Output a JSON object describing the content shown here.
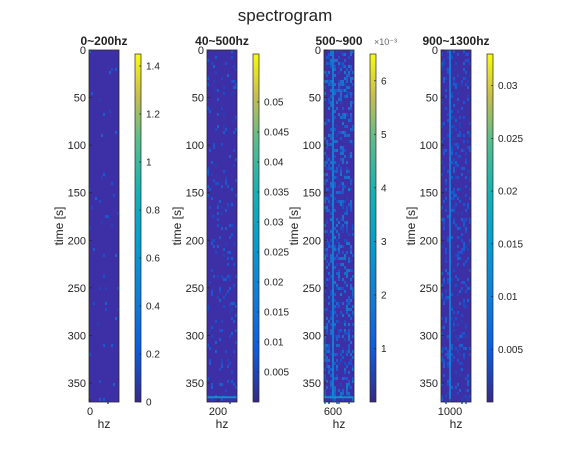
{
  "figure": {
    "title": "spectrogram",
    "colors": {
      "background": "#ffffff",
      "axis": "#262626",
      "text": "#222222",
      "spectrogram_base": "#3d2fa6",
      "colormap": "parula"
    }
  },
  "chart_data": [
    {
      "type": "heatmap",
      "title": "0~200hz",
      "xlabel": "hz",
      "ylabel": "time [s]",
      "x_ticks": [
        0
      ],
      "y_ticks": [
        0,
        50,
        100,
        150,
        200,
        250,
        300,
        350
      ],
      "ylim": [
        0,
        370
      ],
      "y_reversed": true,
      "colorbar": {
        "range": [
          0,
          1.45
        ],
        "ticks": [
          0,
          0.2,
          0.4,
          0.6,
          0.8,
          1,
          1.2,
          1.4
        ],
        "tick_labels": [
          "0",
          "0.2",
          "0.4",
          "0.6",
          "0.8",
          "1",
          "1.2",
          "1.4"
        ],
        "exponent": ""
      },
      "intensity": "near-zero uniform",
      "visible_lines": []
    },
    {
      "type": "heatmap",
      "title": "40~500hz",
      "xlabel": "hz",
      "ylabel": "time [s]",
      "x_ticks": [
        200
      ],
      "y_ticks": [
        0,
        50,
        100,
        150,
        200,
        250,
        300,
        350
      ],
      "ylim": [
        0,
        370
      ],
      "y_reversed": true,
      "colorbar": {
        "range": [
          0,
          0.058
        ],
        "ticks": [
          0.005,
          0.01,
          0.015,
          0.02,
          0.025,
          0.03,
          0.035,
          0.04,
          0.045,
          0.05
        ],
        "tick_labels": [
          "0.005",
          "0.01",
          "0.015",
          "0.02",
          "0.025",
          "0.03",
          "0.035",
          "0.04",
          "0.045",
          "0.05"
        ],
        "exponent": ""
      },
      "intensity": "low with faint speckle",
      "visible_lines": [
        {
          "time": 365
        }
      ]
    },
    {
      "type": "heatmap",
      "title": "500~900",
      "xlabel": "hz",
      "ylabel": "time [s]",
      "x_ticks": [
        600
      ],
      "y_ticks": [
        0,
        50,
        100,
        150,
        200,
        250,
        300,
        350
      ],
      "ylim": [
        0,
        370
      ],
      "y_reversed": true,
      "colorbar": {
        "range": [
          0,
          0.0065
        ],
        "ticks": [
          0.001,
          0.002,
          0.003,
          0.004,
          0.005,
          0.006
        ],
        "tick_labels": [
          "1",
          "2",
          "3",
          "4",
          "5",
          "6"
        ],
        "exponent": "×10⁻³"
      },
      "intensity": "speckled, brighter noise",
      "visible_lines": [
        {
          "time": 365
        },
        {
          "freq": 600
        }
      ]
    },
    {
      "type": "heatmap",
      "title": "900~1300hz",
      "xlabel": "hz",
      "ylabel": "time [s]",
      "x_ticks": [
        1000
      ],
      "y_ticks": [
        0,
        50,
        100,
        150,
        200,
        250,
        300,
        350
      ],
      "ylim": [
        0,
        370
      ],
      "y_reversed": true,
      "colorbar": {
        "range": [
          0,
          0.033
        ],
        "ticks": [
          0.005,
          0.01,
          0.015,
          0.02,
          0.025,
          0.03
        ],
        "tick_labels": [
          "0.005",
          "0.01",
          "0.015",
          "0.02",
          "0.025",
          "0.03"
        ],
        "exponent": ""
      },
      "intensity": "low with speckle",
      "visible_lines": [
        {
          "freq": 1000
        }
      ]
    }
  ]
}
